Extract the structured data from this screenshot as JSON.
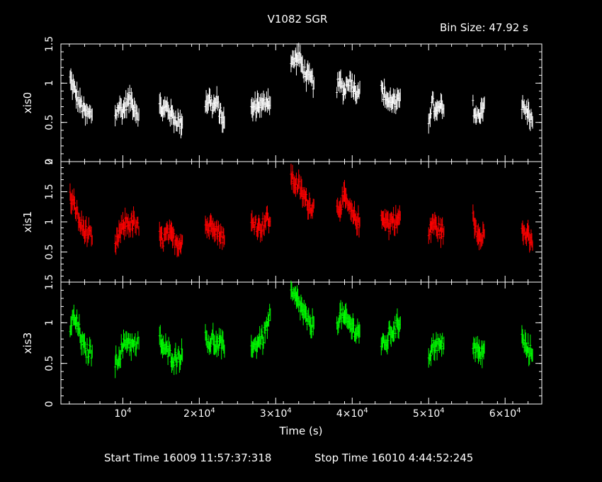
{
  "title": "V1082 SGR",
  "bin_size": "Bin Size: 47.92 s",
  "footer": {
    "start": "Start Time 16009 11:57:37:318",
    "stop": "Stop Time 16010  4:44:52:245"
  },
  "chart_data": {
    "type": "scatter",
    "xlabel": "Time (s)",
    "xlim": [
      1900,
      64800
    ],
    "xticks": [
      {
        "value": 10000,
        "mant": "10",
        "exp": "4"
      },
      {
        "value": 20000,
        "mant": "2×10",
        "exp": "4"
      },
      {
        "value": 30000,
        "mant": "3×10",
        "exp": "4"
      },
      {
        "value": 40000,
        "mant": "4×10",
        "exp": "4"
      },
      {
        "value": 50000,
        "mant": "5×10",
        "exp": "4"
      },
      {
        "value": 60000,
        "mant": "6×10",
        "exp": "4"
      }
    ],
    "panels": [
      {
        "ylabel": "xis0",
        "color": "#ffffff",
        "ylim": [
          0,
          1.5
        ],
        "yticks": [
          {
            "v": 0,
            "t": "0"
          },
          {
            "v": 0.5,
            "t": "0.5"
          },
          {
            "v": 1,
            "t": "1"
          },
          {
            "v": 1.5,
            "t": "1.5"
          }
        ],
        "segments": [
          {
            "x": [
              3100,
              3500,
              3900,
              4300,
              4700,
              5100,
              6000
            ],
            "y": [
              1.05,
              0.95,
              0.85,
              0.75,
              0.7,
              0.6,
              0.6
            ]
          },
          {
            "x": [
              9000,
              9500,
              10000,
              10500,
              11000,
              11500,
              12100
            ],
            "y": [
              0.6,
              0.7,
              0.65,
              0.75,
              0.8,
              0.7,
              0.6
            ]
          },
          {
            "x": [
              14800,
              15300,
              15800,
              16300,
              16800,
              17300,
              17800
            ],
            "y": [
              0.7,
              0.65,
              0.7,
              0.6,
              0.55,
              0.5,
              0.5
            ]
          },
          {
            "x": [
              20800,
              21300,
              21800,
              22300,
              22800,
              23300
            ],
            "y": [
              0.75,
              0.8,
              0.7,
              0.75,
              0.6,
              0.5
            ]
          },
          {
            "x": [
              26800,
              27300,
              27800,
              28300,
              28800,
              29300
            ],
            "y": [
              0.65,
              0.7,
              0.75,
              0.7,
              0.8,
              0.75
            ]
          },
          {
            "x": [
              32000,
              32500,
              33000,
              33500,
              34000,
              34500,
              35000
            ],
            "y": [
              1.25,
              1.3,
              1.35,
              1.2,
              1.1,
              1.05,
              1.0
            ]
          },
          {
            "x": [
              38000,
              38500,
              39000,
              39500,
              40000,
              40500,
              41000
            ],
            "y": [
              0.95,
              1.0,
              0.9,
              1.05,
              1.0,
              0.9,
              0.95
            ]
          },
          {
            "x": [
              43800,
              44300,
              44800,
              45300,
              45800,
              46300
            ],
            "y": [
              0.9,
              0.85,
              0.75,
              0.8,
              0.7,
              0.85
            ]
          },
          {
            "x": [
              50000,
              50500,
              51000,
              51500,
              52000
            ],
            "y": [
              0.55,
              0.75,
              0.6,
              0.7,
              0.65
            ]
          },
          {
            "x": [
              55800,
              56300,
              56800,
              57300
            ],
            "y": [
              0.7,
              0.55,
              0.65,
              0.75
            ]
          },
          {
            "x": [
              62200,
              62700,
              63200,
              63600
            ],
            "y": [
              0.7,
              0.65,
              0.6,
              0.5
            ]
          }
        ]
      },
      {
        "ylabel": "xis1",
        "color": "#ff0000",
        "ylim": [
          0,
          2
        ],
        "yticks": [
          {
            "v": 0.5,
            "t": "0.5"
          },
          {
            "v": 1,
            "t": "1"
          },
          {
            "v": 1.5,
            "t": "1.5"
          },
          {
            "v": 2,
            "t": "2"
          }
        ],
        "segments": [
          {
            "x": [
              3100,
              3500,
              3900,
              4300,
              4700,
              5100,
              6000
            ],
            "y": [
              1.4,
              1.3,
              1.2,
              1.0,
              0.9,
              0.85,
              0.7
            ]
          },
          {
            "x": [
              9000,
              9500,
              10000,
              10500,
              11000,
              11500,
              12100
            ],
            "y": [
              0.55,
              0.8,
              0.9,
              1.0,
              0.95,
              1.0,
              0.85
            ]
          },
          {
            "x": [
              14800,
              15300,
              15800,
              16300,
              16800,
              17300,
              17800
            ],
            "y": [
              0.75,
              0.7,
              0.8,
              0.75,
              0.7,
              0.65,
              0.7
            ]
          },
          {
            "x": [
              20800,
              21300,
              21800,
              22300,
              22800,
              23300
            ],
            "y": [
              0.95,
              0.9,
              1.0,
              0.85,
              0.8,
              0.7
            ]
          },
          {
            "x": [
              26800,
              27300,
              27800,
              28300,
              28800,
              29300
            ],
            "y": [
              0.95,
              1.0,
              0.9,
              0.95,
              1.05,
              1.0
            ]
          },
          {
            "x": [
              32000,
              32500,
              33000,
              33500,
              34000,
              34500,
              35000
            ],
            "y": [
              1.75,
              1.65,
              1.6,
              1.45,
              1.35,
              1.25,
              1.3
            ]
          },
          {
            "x": [
              38000,
              38500,
              39000,
              39500,
              40000,
              40500,
              41000
            ],
            "y": [
              1.2,
              1.3,
              1.4,
              1.25,
              1.1,
              1.05,
              1.0
            ]
          },
          {
            "x": [
              43800,
              44300,
              44800,
              45300,
              45800,
              46300
            ],
            "y": [
              1.0,
              1.1,
              0.95,
              1.05,
              1.0,
              1.1
            ]
          },
          {
            "x": [
              50000,
              50500,
              51000,
              51500,
              52000
            ],
            "y": [
              0.75,
              1.0,
              0.9,
              0.85,
              0.85
            ]
          },
          {
            "x": [
              55800,
              56300,
              56800,
              57300
            ],
            "y": [
              1.05,
              0.85,
              0.8,
              0.8
            ]
          },
          {
            "x": [
              62200,
              62700,
              63200,
              63600
            ],
            "y": [
              0.85,
              0.8,
              0.7,
              0.6
            ]
          }
        ]
      },
      {
        "ylabel": "xis3",
        "color": "#00ff00",
        "ylim": [
          0,
          1.5
        ],
        "yticks": [
          {
            "v": 0,
            "t": "0"
          },
          {
            "v": 0.5,
            "t": "0.5"
          },
          {
            "v": 1,
            "t": "1"
          },
          {
            "v": 1.5,
            "t": "1.5"
          }
        ],
        "segments": [
          {
            "x": [
              3100,
              3500,
              3900,
              4300,
              4700,
              5100,
              6000
            ],
            "y": [
              0.95,
              1.05,
              1.0,
              0.9,
              0.75,
              0.65,
              0.65
            ]
          },
          {
            "x": [
              9000,
              9500,
              10000,
              10500,
              11000,
              11500,
              12100
            ],
            "y": [
              0.5,
              0.6,
              0.7,
              0.8,
              0.75,
              0.7,
              0.75
            ]
          },
          {
            "x": [
              14800,
              15300,
              15800,
              16300,
              16800,
              17300,
              17800
            ],
            "y": [
              0.8,
              0.7,
              0.65,
              0.6,
              0.55,
              0.6,
              0.6
            ]
          },
          {
            "x": [
              20800,
              21300,
              21800,
              22300,
              22800,
              23300
            ],
            "y": [
              0.85,
              0.75,
              0.8,
              0.7,
              0.75,
              0.65
            ]
          },
          {
            "x": [
              26800,
              27300,
              27800,
              28300,
              28800,
              29300
            ],
            "y": [
              0.75,
              0.7,
              0.8,
              0.8,
              0.95,
              1.1
            ]
          },
          {
            "x": [
              32000,
              32500,
              33000,
              33500,
              34000,
              34500,
              35000
            ],
            "y": [
              1.35,
              1.3,
              1.25,
              1.15,
              1.05,
              0.95,
              1.0
            ]
          },
          {
            "x": [
              38000,
              38500,
              39000,
              39500,
              40000,
              40500,
              41000
            ],
            "y": [
              1.0,
              1.1,
              1.05,
              1.0,
              0.95,
              0.9,
              0.9
            ]
          },
          {
            "x": [
              43800,
              44300,
              44800,
              45300,
              45800,
              46300
            ],
            "y": [
              0.75,
              0.7,
              0.85,
              0.9,
              0.95,
              1.0
            ]
          },
          {
            "x": [
              50000,
              50500,
              51000,
              51500,
              52000
            ],
            "y": [
              0.6,
              0.7,
              0.75,
              0.7,
              0.75
            ]
          },
          {
            "x": [
              55800,
              56300,
              56800,
              57300
            ],
            "y": [
              0.75,
              0.65,
              0.6,
              0.7
            ]
          },
          {
            "x": [
              62200,
              62700,
              63200,
              63600
            ],
            "y": [
              0.8,
              0.7,
              0.65,
              0.6
            ]
          }
        ]
      }
    ]
  }
}
